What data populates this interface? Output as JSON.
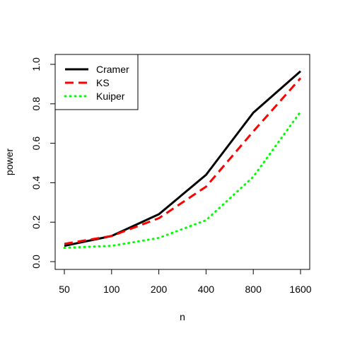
{
  "chart_data": {
    "type": "line",
    "title": "",
    "xlabel": "n",
    "ylabel": "power",
    "categories": [
      "50",
      "100",
      "200",
      "400",
      "800",
      "1600"
    ],
    "ylim": [
      0,
      1
    ],
    "yticks": [
      "0.0",
      "0.2",
      "0.4",
      "0.6",
      "0.8",
      "1.0"
    ],
    "grid": false,
    "legend_position": "top-left",
    "series": [
      {
        "name": "Cramer",
        "color": "#000000",
        "style": "solid",
        "values": [
          0.08,
          0.13,
          0.24,
          0.44,
          0.755,
          0.965
        ]
      },
      {
        "name": "KS",
        "color": "#ff0000",
        "style": "dashed",
        "values": [
          0.09,
          0.13,
          0.22,
          0.38,
          0.66,
          0.93
        ]
      },
      {
        "name": "Kuiper",
        "color": "#00ff00",
        "style": "dotted",
        "values": [
          0.07,
          0.08,
          0.12,
          0.21,
          0.43,
          0.76
        ]
      }
    ]
  }
}
